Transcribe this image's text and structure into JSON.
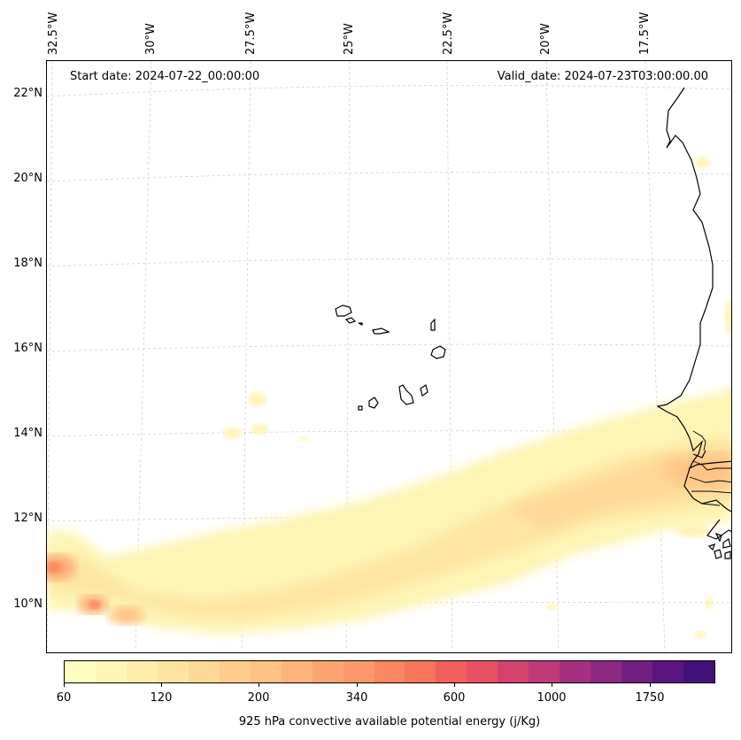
{
  "map": {
    "start_date": "Start date: 2024-07-22_00:00:00",
    "valid_date": "Valid_date: 2024-07-23T03:00:00.00",
    "lat_labels": [
      "22°N",
      "20°N",
      "18°N",
      "16°N",
      "14°N",
      "12°N",
      "10°N"
    ],
    "lon_labels": [
      "32.5°W",
      "30°W",
      "27.5°W",
      "25°W",
      "22.5°W",
      "20°W",
      "17.5°W"
    ],
    "field": "925 hPa convective available potential energy",
    "region": {
      "lat_range": [
        9,
        22.5
      ],
      "lon_range": [
        "33°W",
        "16.5°W"
      ]
    }
  },
  "colorbar": {
    "label": "925 hPa convective available potential energy (j/Kg)",
    "ticks": [
      "60",
      "120",
      "200",
      "340",
      "600",
      "1000",
      "1750"
    ],
    "colors": [
      "#fcfdbf",
      "#fdf6b5",
      "#feedab",
      "#fee4a0",
      "#fed896",
      "#fecd8c",
      "#fec083",
      "#feb47b",
      "#fda572",
      "#fc976b",
      "#fb8761",
      "#f8765c",
      "#f1605d",
      "#e75263",
      "#d3436e",
      "#bf3a77",
      "#a5317e",
      "#8c2981",
      "#721f81",
      "#5a167e",
      "#431078"
    ]
  }
}
